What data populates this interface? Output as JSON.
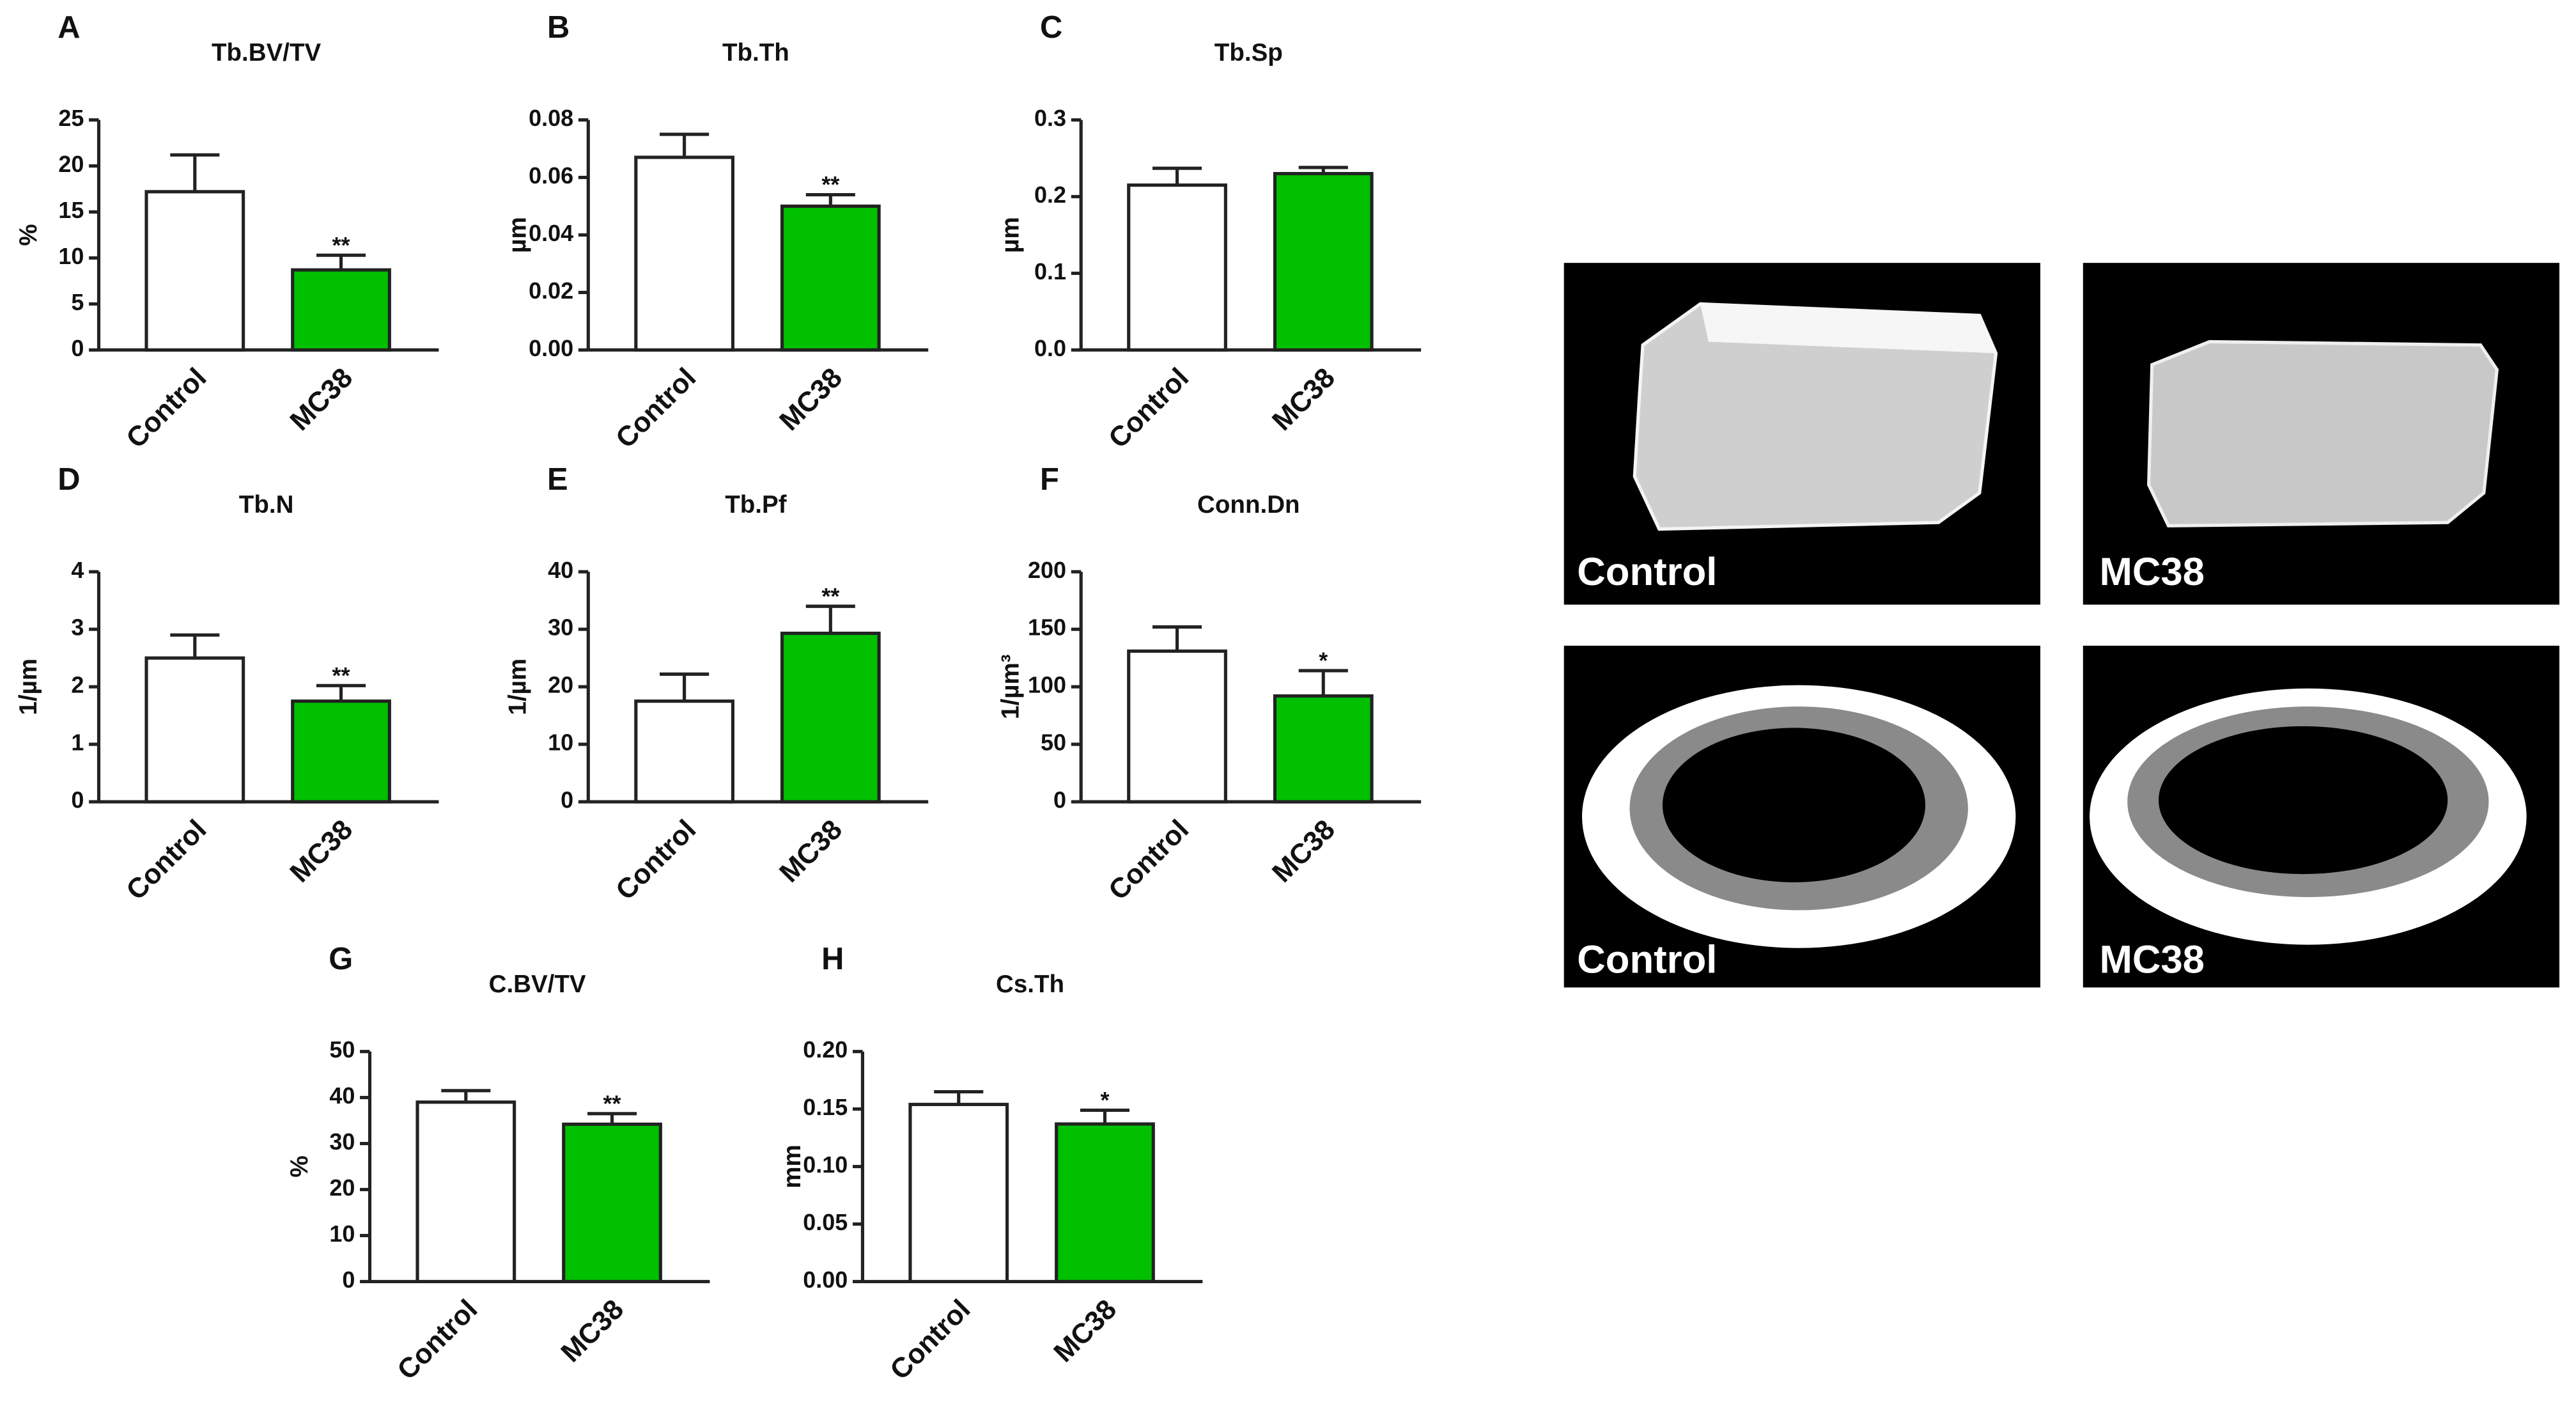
{
  "chart_data": [
    {
      "type": "bar",
      "panel": "A",
      "title": "Tb.BV/TV",
      "ylabel": "%",
      "categories": [
        "Control",
        "MC38"
      ],
      "values": [
        17.2,
        8.7
      ],
      "errors": [
        4.0,
        1.6
      ],
      "value_annotations": [
        null,
        "**"
      ],
      "colors": [
        "#ffffff",
        "#00c000"
      ],
      "ylim": [
        0,
        25
      ],
      "yticks": [
        0,
        5,
        10,
        15,
        20,
        25
      ]
    },
    {
      "type": "bar",
      "panel": "B",
      "title": "Tb.Th",
      "ylabel": "µm",
      "categories": [
        "Control",
        "MC38"
      ],
      "values": [
        0.067,
        0.05
      ],
      "errors": [
        0.008,
        0.004
      ],
      "value_annotations": [
        null,
        "**"
      ],
      "colors": [
        "#ffffff",
        "#00c000"
      ],
      "ylim": [
        0,
        0.08
      ],
      "yticks": [
        {
          "value": 0,
          "label": "0.00"
        },
        {
          "value": 0.02,
          "label": "0.02"
        },
        {
          "value": 0.04,
          "label": "0.04"
        },
        {
          "value": 0.06,
          "label": "0.06"
        },
        {
          "value": 0.08,
          "label": "0.08"
        }
      ]
    },
    {
      "type": "bar",
      "panel": "C",
      "title": "Tb.Sp",
      "ylabel": "µm",
      "categories": [
        "Control",
        "MC38"
      ],
      "values": [
        0.215,
        0.23
      ],
      "errors": [
        0.022,
        0.008
      ],
      "colors": [
        "#ffffff",
        "#00c000"
      ],
      "ylim": [
        0,
        0.3
      ],
      "yticks": [
        {
          "value": 0,
          "label": "0.0"
        },
        0.1,
        0.2,
        0.3
      ]
    },
    {
      "type": "bar",
      "panel": "D",
      "title": "Tb.N",
      "ylabel": "1/µm",
      "categories": [
        "Control",
        "MC38"
      ],
      "values": [
        2.5,
        1.75
      ],
      "errors": [
        0.4,
        0.27
      ],
      "value_annotations": [
        null,
        "**"
      ],
      "colors": [
        "#ffffff",
        "#00c000"
      ],
      "ylim": [
        0,
        4
      ],
      "yticks": [
        0,
        1,
        2,
        3,
        4
      ]
    },
    {
      "type": "bar",
      "panel": "E",
      "title": "Tb.Pf",
      "ylabel": "1/µm",
      "categories": [
        "Control",
        "MC38"
      ],
      "values": [
        17.5,
        29.3
      ],
      "errors": [
        4.7,
        4.7
      ],
      "value_annotations": [
        null,
        "**"
      ],
      "colors": [
        "#ffffff",
        "#00c000"
      ],
      "ylim": [
        0,
        40
      ],
      "yticks": [
        0,
        10,
        20,
        30,
        40
      ]
    },
    {
      "type": "bar",
      "panel": "F",
      "title": "Conn.Dn",
      "ylabel": "1/µm³",
      "categories": [
        "Control",
        "MC38"
      ],
      "values": [
        131,
        92
      ],
      "errors": [
        21,
        22
      ],
      "value_annotations": [
        null,
        "*"
      ],
      "colors": [
        "#ffffff",
        "#00c000"
      ],
      "ylim": [
        0,
        200
      ],
      "yticks": [
        0,
        50,
        100,
        150,
        200
      ]
    },
    {
      "type": "bar",
      "panel": "G",
      "title": "C.BV/TV",
      "ylabel": "%",
      "categories": [
        "Control",
        "MC38"
      ],
      "values": [
        39,
        34.2
      ],
      "errors": [
        2.5,
        2.3
      ],
      "value_annotations": [
        null,
        "**"
      ],
      "colors": [
        "#ffffff",
        "#00c000"
      ],
      "ylim": [
        0,
        50
      ],
      "yticks": [
        0,
        10,
        20,
        30,
        40,
        50
      ]
    },
    {
      "type": "bar",
      "panel": "H",
      "title": "Cs.Th",
      "ylabel": "mm",
      "categories": [
        "Control",
        "MC38"
      ],
      "values": [
        0.154,
        0.137
      ],
      "errors": [
        0.011,
        0.012
      ],
      "value_annotations": [
        null,
        "*"
      ],
      "colors": [
        "#ffffff",
        "#00c000"
      ],
      "ylim": [
        0,
        0.2
      ],
      "yticks": [
        {
          "value": 0,
          "label": "0.00"
        },
        {
          "value": 0.05,
          "label": "0.05"
        },
        {
          "value": 0.1,
          "label": "0.10"
        },
        {
          "value": 0.15,
          "label": "0.15"
        },
        {
          "value": 0.2,
          "label": "0.20"
        }
      ]
    }
  ],
  "images": [
    {
      "label": "Control"
    },
    {
      "label": "MC38"
    },
    {
      "label": "Control"
    },
    {
      "label": "MC38"
    }
  ]
}
